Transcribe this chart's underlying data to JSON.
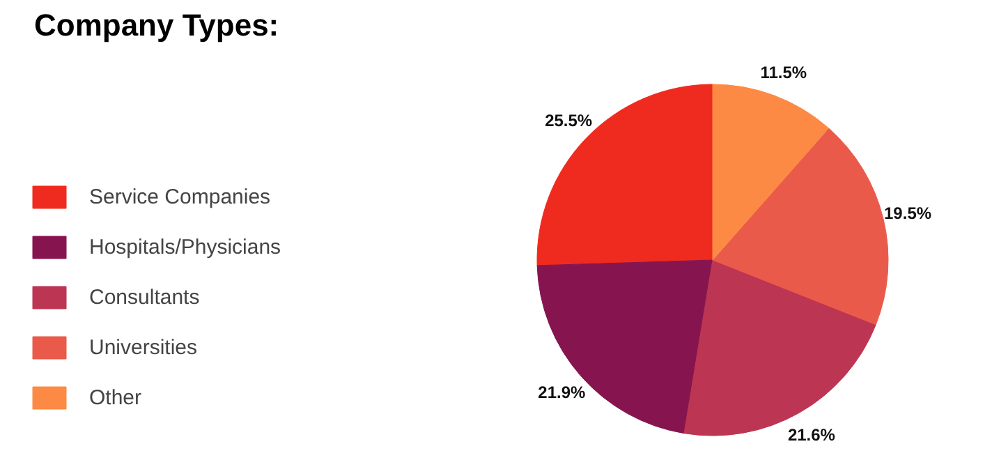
{
  "chart_data": {
    "type": "pie",
    "title": "Company Types:",
    "categories": [
      "Service Companies",
      "Hospitals/Physicians",
      "Consultants",
      "Universities",
      "Other"
    ],
    "values": [
      25.5,
      21.9,
      21.6,
      19.5,
      11.5
    ],
    "colors": [
      "#ef2b1f",
      "#86154f",
      "#bc3552",
      "#ea5a4a",
      "#fd8a44"
    ],
    "value_labels": [
      "25.5%",
      "21.9%",
      "21.6%",
      "19.5%",
      "11.5%"
    ],
    "legend": "left"
  }
}
